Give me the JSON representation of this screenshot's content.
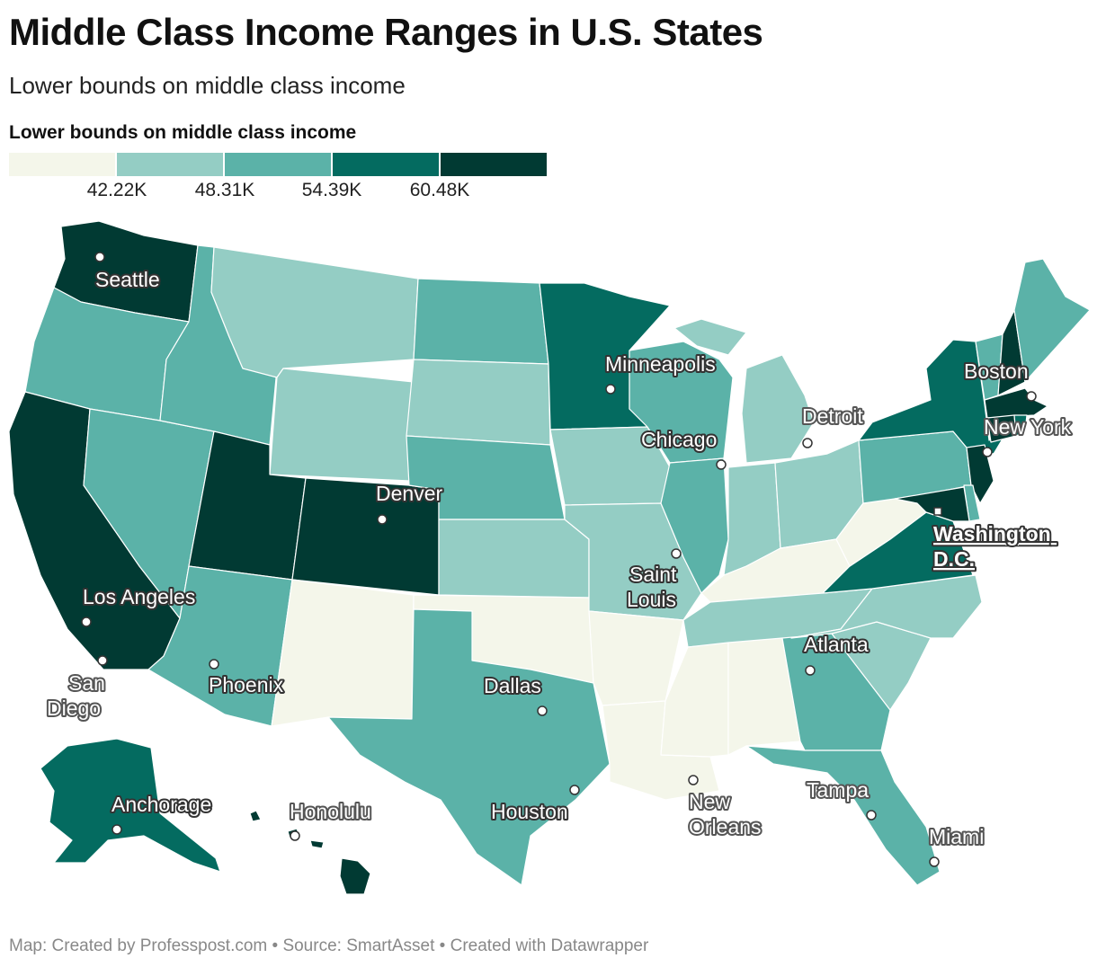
{
  "title": "Middle Class Income Ranges in U.S. States",
  "subtitle": "Lower bounds on middle class income",
  "legend": {
    "title": "Lower bounds on middle class income",
    "colors": [
      "#f4f6ea",
      "#94cdc4",
      "#5bb2a8",
      "#046b60",
      "#013a33"
    ],
    "ticks": [
      "42.22K",
      "48.31K",
      "54.39K",
      "60.48K"
    ],
    "thresholds": [
      42.22,
      48.31,
      54.39,
      60.48
    ]
  },
  "map_data": {
    "classes": {
      "WA": 4,
      "OR": 2,
      "CA": 4,
      "ID": 2,
      "NV": 2,
      "MT": 1,
      "WY": 1,
      "UT": 4,
      "AZ": 2,
      "CO": 4,
      "NM": 0,
      "ND": 2,
      "SD": 1,
      "NE": 2,
      "KS": 1,
      "OK": 0,
      "TX": 2,
      "MN": 3,
      "IA": 1,
      "MO": 1,
      "AR": 0,
      "LA": 0,
      "WI": 2,
      "IL": 2,
      "MI": 1,
      "IN": 1,
      "OH": 1,
      "KY": 0,
      "TN": 1,
      "MS": 0,
      "AL": 0,
      "GA": 2,
      "FL": 2,
      "SC": 1,
      "NC": 1,
      "VA": 3,
      "WV": 0,
      "PA": 2,
      "NY": 3,
      "VT": 2,
      "NH": 4,
      "ME": 2,
      "MA": 4,
      "RI": 3,
      "CT": 4,
      "NJ": 4,
      "DE": 2,
      "MD": 4,
      "AK": 3,
      "HI": 4
    }
  },
  "cities": [
    {
      "name": "Seattle"
    },
    {
      "name": "Los Angeles"
    },
    {
      "name": "San Diego"
    },
    {
      "name": "Phoenix"
    },
    {
      "name": "Denver"
    },
    {
      "name": "Minneapolis"
    },
    {
      "name": "Chicago"
    },
    {
      "name": "Detroit"
    },
    {
      "name": "Saint Louis"
    },
    {
      "name": "Dallas"
    },
    {
      "name": "Houston"
    },
    {
      "name": "New Orleans"
    },
    {
      "name": "Atlanta"
    },
    {
      "name": "Tampa"
    },
    {
      "name": "Miami"
    },
    {
      "name": "Washington D.C."
    },
    {
      "name": "New York"
    },
    {
      "name": "Boston"
    },
    {
      "name": "Anchorage"
    },
    {
      "name": "Honolulu"
    }
  ],
  "footer": "Map: Created by Professpost.com  • Source: SmartAsset • Created with Datawrapper"
}
